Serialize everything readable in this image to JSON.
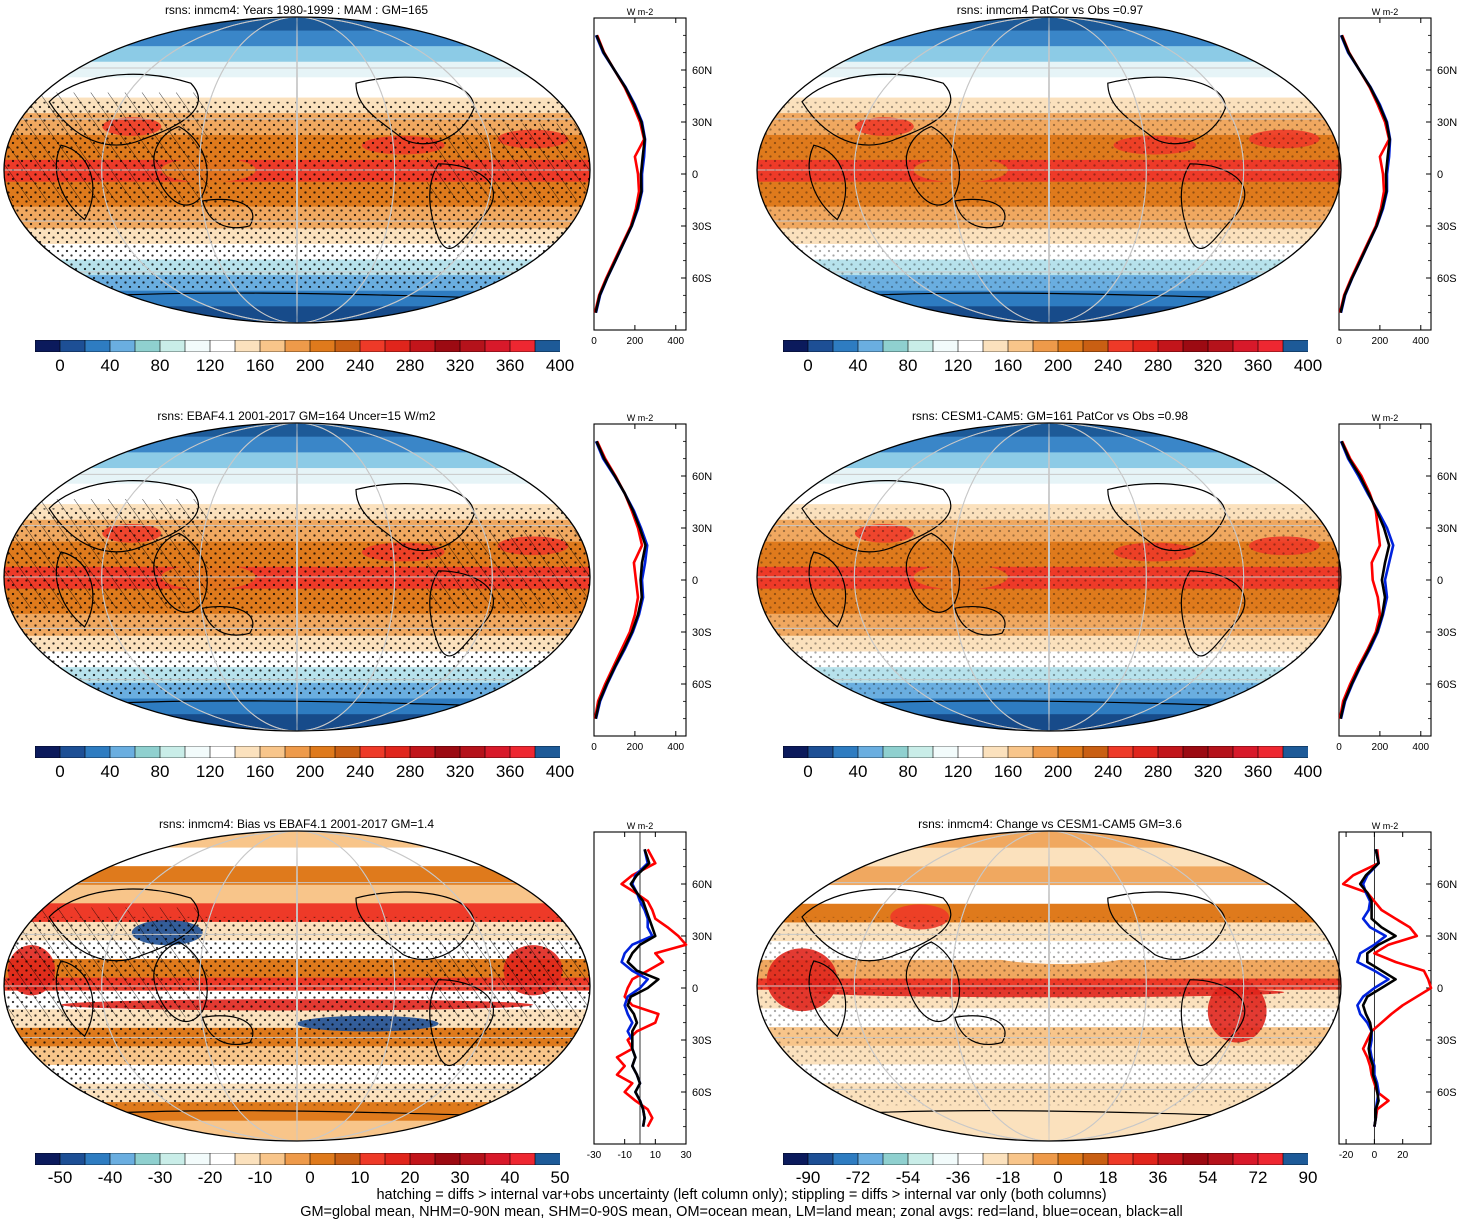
{
  "panels": [
    {
      "id": "p1",
      "title": "rsns: inmcm4: Years 1980-1999 : MAM : GM=165",
      "map_style": "climatology",
      "hatching": true,
      "stippling": "heavy",
      "colorbar": {
        "labels": [
          "0",
          "40",
          "80",
          "120",
          "160",
          "200",
          "240",
          "280",
          "320",
          "360",
          "400"
        ],
        "colors": [
          "#0b1a5c",
          "#1d4f95",
          "#2e7cc1",
          "#6aaee0",
          "#8fd0cf",
          "#c9ede8",
          "#f2fbfb",
          "#ffffff",
          "#fbe1bd",
          "#f8c58a",
          "#ee9a4a",
          "#df7a1c",
          "#c95f13",
          "#ee3a28",
          "#e0251c",
          "#c2151b",
          "#9c0a12",
          "#b5121b",
          "#d8192a",
          "#ee2731",
          "#1d5a98"
        ]
      },
      "zonal": {
        "unit": "W m-2",
        "xticks": [
          "0",
          "200",
          "400"
        ],
        "xrange": [
          0,
          450
        ],
        "lat_labels": [
          "60N",
          "30N",
          "0",
          "30S",
          "60S"
        ],
        "land_color": "#ff0000",
        "ocean_color": "#0022dd",
        "all_color": "#000000",
        "lat": [
          80,
          70,
          60,
          50,
          40,
          30,
          20,
          10,
          0,
          -10,
          -20,
          -30,
          -40,
          -50,
          -60,
          -70,
          -80
        ],
        "land": [
          15,
          50,
          100,
          150,
          190,
          225,
          245,
          200,
          215,
          220,
          205,
          180,
          140,
          100,
          60,
          25,
          5
        ],
        "ocean": [
          10,
          45,
          100,
          155,
          200,
          235,
          250,
          245,
          235,
          235,
          215,
          185,
          145,
          105,
          65,
          30,
          10
        ],
        "all": [
          12,
          48,
          100,
          153,
          196,
          232,
          248,
          238,
          230,
          232,
          212,
          184,
          144,
          104,
          64,
          28,
          8
        ]
      }
    },
    {
      "id": "p2",
      "title": "rsns: inmcm4 PatCor vs Obs =0.97",
      "map_style": "climatology",
      "hatching": false,
      "stippling": "light",
      "colorbar": {
        "labels": [
          "0",
          "40",
          "80",
          "120",
          "160",
          "200",
          "240",
          "280",
          "320",
          "360",
          "400"
        ],
        "colors": [
          "#0b1a5c",
          "#1d4f95",
          "#2e7cc1",
          "#6aaee0",
          "#8fd0cf",
          "#c9ede8",
          "#f2fbfb",
          "#ffffff",
          "#fbe1bd",
          "#f8c58a",
          "#ee9a4a",
          "#df7a1c",
          "#c95f13",
          "#ee3a28",
          "#e0251c",
          "#c2151b",
          "#9c0a12",
          "#b5121b",
          "#d8192a",
          "#ee2731",
          "#1d5a98"
        ]
      },
      "zonal": {
        "unit": "W m-2",
        "xticks": [
          "0",
          "200",
          "400"
        ],
        "xrange": [
          0,
          450
        ],
        "lat_labels": [
          "60N",
          "30N",
          "0",
          "30S",
          "60S"
        ],
        "land_color": "#ff0000",
        "ocean_color": "#0022dd",
        "all_color": "#000000",
        "lat": [
          80,
          70,
          60,
          50,
          40,
          30,
          20,
          10,
          0,
          -10,
          -20,
          -30,
          -40,
          -50,
          -60,
          -70,
          -80
        ],
        "land": [
          15,
          50,
          100,
          150,
          190,
          225,
          245,
          200,
          215,
          220,
          205,
          180,
          140,
          100,
          60,
          25,
          5
        ],
        "ocean": [
          10,
          45,
          100,
          155,
          200,
          235,
          250,
          245,
          235,
          235,
          215,
          185,
          145,
          105,
          65,
          30,
          10
        ],
        "all": [
          12,
          48,
          100,
          153,
          196,
          232,
          248,
          238,
          230,
          232,
          212,
          184,
          144,
          104,
          64,
          28,
          8
        ]
      }
    },
    {
      "id": "p3",
      "title": "rsns: EBAF4.1 2001-2017 GM=164 Uncer=15 W/m2",
      "map_style": "climatology",
      "hatching": true,
      "stippling": "heavy",
      "colorbar": {
        "labels": [
          "0",
          "40",
          "80",
          "120",
          "160",
          "200",
          "240",
          "280",
          "320",
          "360",
          "400"
        ],
        "colors": [
          "#0b1a5c",
          "#1d4f95",
          "#2e7cc1",
          "#6aaee0",
          "#8fd0cf",
          "#c9ede8",
          "#f2fbfb",
          "#ffffff",
          "#fbe1bd",
          "#f8c58a",
          "#ee9a4a",
          "#df7a1c",
          "#c95f13",
          "#ee3a28",
          "#e0251c",
          "#c2151b",
          "#9c0a12",
          "#b5121b",
          "#d8192a",
          "#ee2731",
          "#1d5a98"
        ]
      },
      "zonal": {
        "unit": "W m-2",
        "xticks": [
          "0",
          "200",
          "400"
        ],
        "xrange": [
          0,
          450
        ],
        "lat_labels": [
          "60N",
          "30N",
          "0",
          "30S",
          "60S"
        ],
        "land_color": "#ff0000",
        "ocean_color": "#0022dd",
        "all_color": "#000000",
        "lat": [
          80,
          70,
          60,
          50,
          40,
          30,
          20,
          10,
          0,
          -10,
          -20,
          -30,
          -40,
          -50,
          -60,
          -70,
          -80
        ],
        "land": [
          15,
          55,
          105,
          150,
          185,
          215,
          235,
          195,
          205,
          215,
          200,
          175,
          135,
          95,
          55,
          20,
          5
        ],
        "ocean": [
          10,
          45,
          100,
          150,
          195,
          230,
          260,
          250,
          235,
          240,
          220,
          190,
          150,
          105,
          65,
          30,
          10
        ],
        "all": [
          12,
          50,
          102,
          150,
          191,
          224,
          252,
          235,
          228,
          234,
          215,
          186,
          146,
          102,
          62,
          27,
          8
        ]
      }
    },
    {
      "id": "p4",
      "title": "rsns: CESM1-CAM5: GM=161 PatCor vs Obs =0.98",
      "map_style": "climatology",
      "hatching": false,
      "stippling": "light",
      "colorbar": {
        "labels": [
          "0",
          "40",
          "80",
          "120",
          "160",
          "200",
          "240",
          "280",
          "320",
          "360",
          "400"
        ],
        "colors": [
          "#0b1a5c",
          "#1d4f95",
          "#2e7cc1",
          "#6aaee0",
          "#8fd0cf",
          "#c9ede8",
          "#f2fbfb",
          "#ffffff",
          "#fbe1bd",
          "#f8c58a",
          "#ee9a4a",
          "#df7a1c",
          "#c95f13",
          "#ee3a28",
          "#e0251c",
          "#c2151b",
          "#9c0a12",
          "#b5121b",
          "#d8192a",
          "#ee2731",
          "#1d5a98"
        ]
      },
      "zonal": {
        "unit": "W m-2",
        "xticks": [
          "0",
          "200",
          "400"
        ],
        "xrange": [
          0,
          450
        ],
        "lat_labels": [
          "60N",
          "30N",
          "0",
          "30S",
          "60S"
        ],
        "land_color": "#ff0000",
        "ocean_color": "#0022dd",
        "all_color": "#000000",
        "lat": [
          80,
          70,
          60,
          50,
          40,
          30,
          20,
          10,
          0,
          -10,
          -20,
          -30,
          -40,
          -50,
          -60,
          -70,
          -80
        ],
        "land": [
          15,
          55,
          110,
          150,
          180,
          190,
          200,
          160,
          165,
          190,
          200,
          180,
          140,
          95,
          55,
          20,
          5
        ],
        "ocean": [
          10,
          45,
          95,
          140,
          190,
          235,
          265,
          245,
          225,
          235,
          215,
          190,
          150,
          105,
          65,
          30,
          10
        ],
        "all": [
          12,
          50,
          102,
          145,
          185,
          220,
          245,
          225,
          210,
          225,
          212,
          186,
          146,
          102,
          62,
          27,
          8
        ]
      }
    },
    {
      "id": "p5",
      "title": "rsns: inmcm4: Bias vs EBAF4.1 2001-2017 GM=1.4",
      "map_style": "bias",
      "hatching": true,
      "stippling": "heavy",
      "colorbar": {
        "labels": [
          "-50",
          "-40",
          "-30",
          "-20",
          "-10",
          "0",
          "10",
          "20",
          "30",
          "40",
          "50"
        ],
        "colors": [
          "#0b1a5c",
          "#1d4f95",
          "#2e7cc1",
          "#6aaee0",
          "#8fd0cf",
          "#c9ede8",
          "#f2fbfb",
          "#ffffff",
          "#fbe1bd",
          "#f8c58a",
          "#ee9a4a",
          "#df7a1c",
          "#c95f13",
          "#ee3a28",
          "#e0251c",
          "#c2151b",
          "#9c0a12",
          "#b5121b",
          "#d8192a",
          "#ee2731",
          "#1d5a98"
        ]
      },
      "zonal": {
        "unit": "W m-2",
        "xticks": [
          "-30",
          "-10",
          "10",
          "30"
        ],
        "xrange": [
          -30,
          30
        ],
        "lat_labels": [
          "60N",
          "30N",
          "0",
          "30S",
          "60S"
        ],
        "land_color": "#ff0000",
        "ocean_color": "#0022dd",
        "all_color": "#000000",
        "lat": [
          80,
          72,
          65,
          60,
          55,
          50,
          45,
          40,
          35,
          30,
          25,
          20,
          15,
          10,
          5,
          0,
          -5,
          -10,
          -15,
          -20,
          -25,
          -30,
          -35,
          -40,
          -45,
          -50,
          -55,
          -60,
          -65,
          -70,
          -75,
          -80
        ],
        "land": [
          5,
          10,
          -5,
          -12,
          -3,
          5,
          8,
          10,
          18,
          25,
          30,
          10,
          15,
          5,
          -5,
          -8,
          -10,
          -5,
          12,
          10,
          -2,
          -8,
          -5,
          -15,
          -10,
          -15,
          -5,
          -10,
          -3,
          5,
          8,
          5
        ],
        "ocean": [
          3,
          5,
          -3,
          -5,
          -2,
          0,
          3,
          5,
          5,
          8,
          -5,
          -10,
          -12,
          -5,
          5,
          0,
          -8,
          -10,
          -8,
          -5,
          -8,
          -5,
          -5,
          -3,
          -5,
          -2,
          0,
          -3,
          0,
          2,
          3,
          2
        ],
        "all": [
          3,
          6,
          -2,
          -6,
          -2,
          2,
          4,
          6,
          8,
          10,
          0,
          -5,
          -8,
          -2,
          12,
          5,
          -6,
          -8,
          -4,
          -2,
          -5,
          -5,
          -5,
          -3,
          -5,
          -2,
          0,
          -3,
          0,
          2,
          3,
          2
        ]
      }
    },
    {
      "id": "p6",
      "title": "rsns: inmcm4: Change vs CESM1-CAM5 GM=3.6",
      "map_style": "change",
      "hatching": false,
      "stippling": "light",
      "colorbar": {
        "labels": [
          "-90",
          "-72",
          "-54",
          "-36",
          "-18",
          "0",
          "18",
          "36",
          "54",
          "72",
          "90"
        ],
        "colors": [
          "#0b1a5c",
          "#1d4f95",
          "#2e7cc1",
          "#6aaee0",
          "#8fd0cf",
          "#c9ede8",
          "#f2fbfb",
          "#ffffff",
          "#fbe1bd",
          "#f8c58a",
          "#ee9a4a",
          "#df7a1c",
          "#c95f13",
          "#ee3a28",
          "#e0251c",
          "#c2151b",
          "#9c0a12",
          "#b5121b",
          "#d8192a",
          "#ee2731",
          "#1d5a98"
        ]
      },
      "zonal": {
        "unit": "W m-2",
        "xticks": [
          "-20",
          "0",
          "20"
        ],
        "xrange": [
          -25,
          40
        ],
        "lat_labels": [
          "60N",
          "30N",
          "0",
          "30S",
          "60S"
        ],
        "land_color": "#ff0000",
        "ocean_color": "#0022dd",
        "all_color": "#000000",
        "lat": [
          80,
          72,
          65,
          60,
          55,
          50,
          45,
          40,
          35,
          30,
          25,
          20,
          15,
          10,
          5,
          0,
          -5,
          -10,
          -15,
          -20,
          -25,
          -30,
          -35,
          -40,
          -45,
          -50,
          -55,
          -60,
          -65,
          -70,
          -75,
          -80
        ],
        "land": [
          2,
          3,
          -15,
          -22,
          -5,
          0,
          5,
          15,
          25,
          30,
          10,
          0,
          15,
          35,
          38,
          40,
          30,
          20,
          12,
          5,
          -2,
          -5,
          -8,
          -5,
          -3,
          -2,
          0,
          2,
          10,
          2,
          1,
          0
        ],
        "ocean": [
          1,
          3,
          -5,
          -8,
          -6,
          -3,
          -4,
          -8,
          -3,
          8,
          0,
          -10,
          -12,
          0,
          10,
          0,
          -8,
          -12,
          -10,
          -5,
          -2,
          -2,
          -3,
          -2,
          0,
          0,
          2,
          3,
          2,
          1,
          1,
          0
        ],
        "all": [
          1,
          3,
          -6,
          -10,
          -5,
          -2,
          -2,
          -2,
          5,
          15,
          3,
          -5,
          -5,
          5,
          15,
          5,
          -5,
          -8,
          -6,
          -3,
          -2,
          -3,
          -4,
          -3,
          -1,
          -1,
          1,
          2,
          3,
          1,
          1,
          0
        ]
      }
    }
  ],
  "footer": {
    "line1": "hatching = diffs > internal var+obs uncertainty (left column only); stippling = diffs > internal var only (both columns)",
    "line2": "GM=global mean, NHM=0-90N mean, SHM=0-90S mean, OM=ocean mean, LM=land mean; zonal avgs: red=land, blue=ocean, black=all"
  }
}
